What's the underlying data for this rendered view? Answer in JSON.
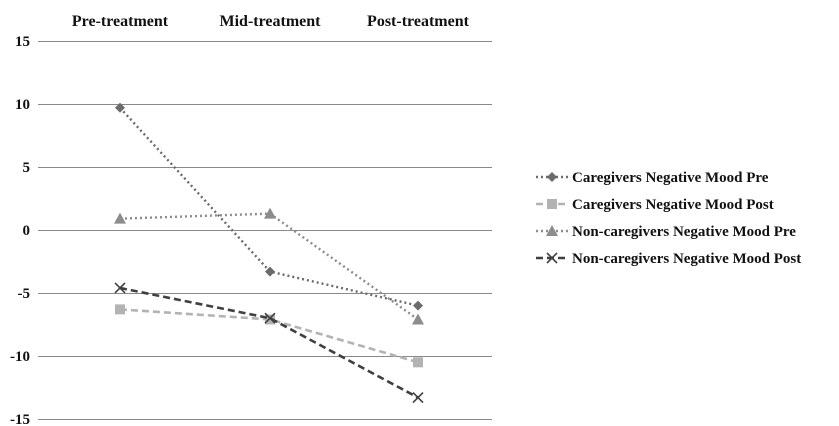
{
  "chart_data": {
    "type": "line",
    "title": "",
    "xlabel": "",
    "ylabel": "",
    "categories": [
      "Pre-treatment",
      "Mid-treatment",
      "Post-treatment"
    ],
    "category_axis_position": "top",
    "y_ticks": [
      "15",
      "10",
      "5",
      "0",
      "-5",
      "-10",
      "-15"
    ],
    "ylim": [
      -15,
      15
    ],
    "grid": true,
    "legend_position": "right",
    "series": [
      {
        "name": "Caregivers Negative Mood Pre",
        "values": [
          9.7,
          -3.3,
          -6.0
        ],
        "color": "#6b6b6b",
        "marker": "diamond",
        "dash": "dotted"
      },
      {
        "name": "Caregivers Negative Mood Post",
        "values": [
          -6.3,
          -7.1,
          -10.5
        ],
        "color": "#b3b3b3",
        "marker": "square",
        "dash": "dashed"
      },
      {
        "name": "Non-caregivers Negative Mood Pre",
        "values": [
          0.9,
          1.3,
          -7.1
        ],
        "color": "#8c8c8c",
        "marker": "triangle",
        "dash": "dotted"
      },
      {
        "name": "Non-caregivers Negative Mood Post",
        "values": [
          -4.6,
          -7.0,
          -13.3
        ],
        "color": "#404040",
        "marker": "x",
        "dash": "dashed"
      }
    ]
  }
}
